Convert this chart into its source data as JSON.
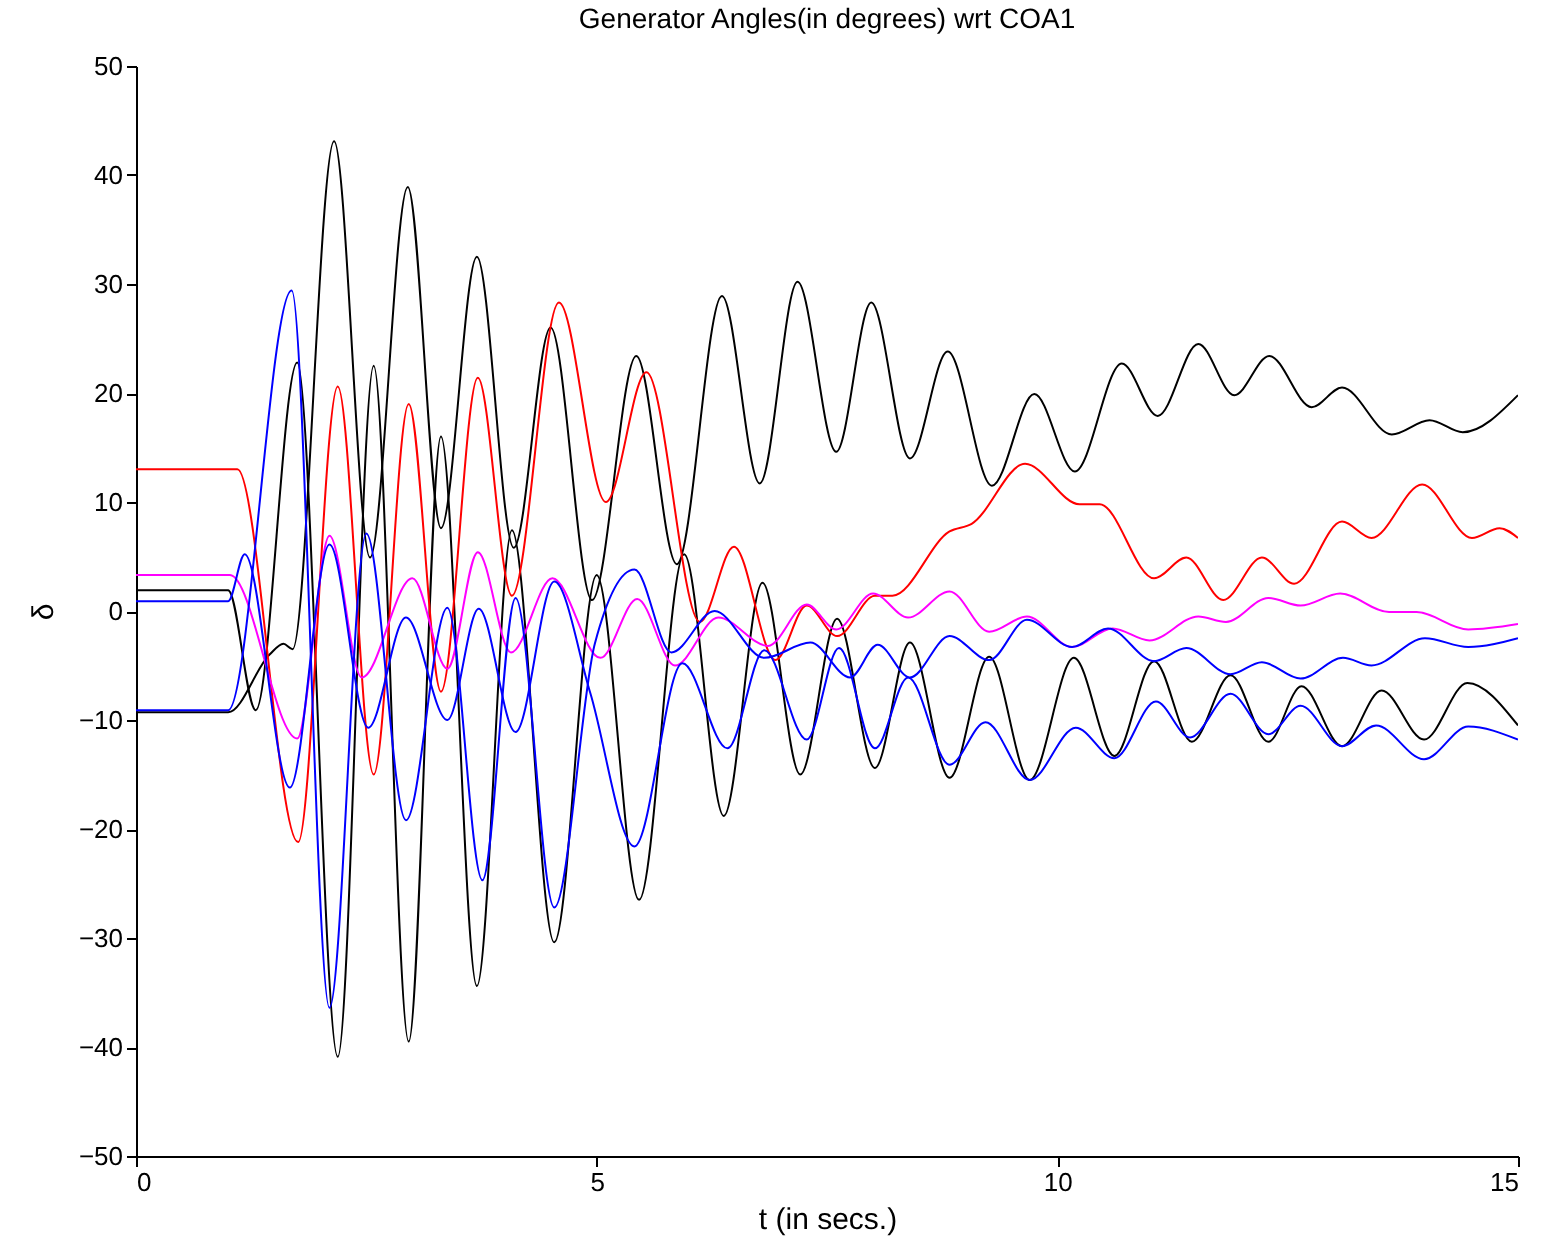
{
  "chart_data": {
    "type": "line",
    "title": "Generator Angles(in degrees) wrt COA1",
    "xlabel": "t (in secs.)",
    "ylabel": "δ",
    "xlim": [
      0,
      15
    ],
    "xticks": [
      0,
      5,
      10,
      15
    ],
    "ylim": [
      -50,
      50
    ],
    "yticks": [
      -50,
      -40,
      -30,
      -20,
      -10,
      0,
      10,
      20,
      30,
      40,
      50
    ],
    "grid": false,
    "legend": false,
    "series": [
      {
        "color": "#000000",
        "x": [
          0,
          1.0,
          1.45,
          1.6,
          1.7,
          2.15,
          2.54,
          2.95,
          3.31,
          3.7,
          4.1,
          4.5,
          4.95,
          5.43,
          5.87,
          6.36,
          6.77,
          7.18,
          7.6,
          7.98,
          8.4,
          8.81,
          9.29,
          9.75,
          10.19,
          10.7,
          11.09,
          11.53,
          11.92,
          12.3,
          12.76,
          13.09,
          13.63,
          14.04,
          14.4,
          15
        ],
        "values": [
          -9.3,
          -9.3,
          -4,
          -3,
          -3.5,
          43.1,
          4.9,
          38.9,
          7.6,
          32.5,
          5.8,
          26,
          1.0,
          23.4,
          4.3,
          28.9,
          11.7,
          30.2,
          14.6,
          28.3,
          14.0,
          23.8,
          11.5,
          19.9,
          12.8,
          22.7,
          17.9,
          24.5,
          19.8,
          23.4,
          18.7,
          20.5,
          16.2,
          17.5,
          16.4,
          19.8
        ]
      },
      {
        "color": "#000000",
        "x": [
          0,
          1.0,
          1.3,
          1.75,
          2.19,
          2.58,
          2.96,
          3.31,
          3.7,
          4.08,
          4.54,
          5.0,
          5.46,
          5.95,
          6.38,
          6.8,
          7.21,
          7.61,
          8.02,
          8.4,
          8.83,
          9.26,
          9.7,
          10.18,
          10.62,
          11.05,
          11.46,
          11.88,
          12.29,
          12.65,
          13.09,
          13.52,
          13.98,
          14.45,
          15
        ],
        "values": [
          1.9,
          1.9,
          -9.1,
          22.8,
          -40.9,
          22.5,
          -39.5,
          16.0,
          -34.4,
          7.4,
          -30.4,
          3.3,
          -26.5,
          5.2,
          -18.8,
          2.6,
          -15.0,
          -0.7,
          -14.4,
          -2.9,
          -15.3,
          -4.2,
          -15.5,
          -4.3,
          -13.3,
          -4.6,
          -12.0,
          -5.9,
          -12.0,
          -6.9,
          -12.4,
          -7.3,
          -11.8,
          -6.6,
          -10.5
        ]
      },
      {
        "color": "#ff0000",
        "x": [
          0,
          1.1,
          1.76,
          2.19,
          2.58,
          2.96,
          3.31,
          3.71,
          4.08,
          4.59,
          5.1,
          5.54,
          6.12,
          6.49,
          6.94,
          7.28,
          7.61,
          8.02,
          8.21,
          8.83,
          9.07,
          9.65,
          10.24,
          10.46,
          11.05,
          11.4,
          11.8,
          12.22,
          12.57,
          13.09,
          13.41,
          13.96,
          14.5,
          14.8,
          15
        ],
        "values": [
          13,
          13,
          -21.2,
          20.6,
          -15,
          19,
          -7.4,
          21.4,
          1.4,
          28.3,
          10,
          21.9,
          -1,
          5.9,
          -4.5,
          0.5,
          -2.3,
          1.4,
          1.4,
          7.3,
          8,
          13.5,
          9.8,
          9.8,
          3,
          4.9,
          1,
          4.9,
          2.5,
          8.2,
          6.7,
          11.6,
          6.7,
          7.6,
          6.7
        ]
      },
      {
        "color": "#ff00ff",
        "x": [
          0,
          1.02,
          1.75,
          2.1,
          2.45,
          3.0,
          3.38,
          3.71,
          4.07,
          4.52,
          5.04,
          5.44,
          5.85,
          6.32,
          6.86,
          7.28,
          7.6,
          8.0,
          8.38,
          8.83,
          9.26,
          9.67,
          10.16,
          10.6,
          11.0,
          11.53,
          11.83,
          12.29,
          12.64,
          13.07,
          13.6,
          13.9,
          14.46,
          15
        ],
        "values": [
          3.3,
          3.3,
          -11.7,
          6.9,
          -6.1,
          3.0,
          -5.3,
          5.4,
          -3.8,
          3.0,
          -4.3,
          1.1,
          -5.0,
          -0.6,
          -3.2,
          0.6,
          -1.7,
          1.6,
          -0.6,
          1.8,
          -1.9,
          -0.5,
          -3.3,
          -1.6,
          -2.7,
          -0.5,
          -1.0,
          1.2,
          0.5,
          1.6,
          -0.1,
          -0.1,
          -1.7,
          -1.2
        ]
      },
      {
        "color": "#0000ff",
        "x": [
          0,
          1.0,
          1.69,
          2.1,
          2.5,
          2.93,
          3.38,
          3.76,
          4.12,
          4.54,
          4.98,
          5.41,
          5.81,
          6.28,
          6.82,
          7.32,
          7.75,
          8.05,
          8.4,
          8.83,
          9.26,
          9.67,
          10.16,
          10.55,
          11.05,
          11.4,
          11.88,
          12.22,
          12.64,
          13.1,
          13.41,
          13.99,
          14.46,
          15
        ],
        "values": [
          -9.1,
          -9.1,
          29.4,
          -36.4,
          7.1,
          -19.2,
          0.3,
          -24.7,
          1.2,
          -27.2,
          -3.0,
          3.8,
          -3.8,
          0.0,
          -4.3,
          -2.9,
          -6.1,
          -3.1,
          -6.1,
          -2.3,
          -4.5,
          -0.8,
          -3.3,
          -1.6,
          -4.6,
          -3.4,
          -5.8,
          -4.7,
          -6.2,
          -4.3,
          -5.0,
          -2.5,
          -3.3,
          -2.5
        ]
      },
      {
        "color": "#0000ff",
        "x": [
          0,
          1.0,
          1.18,
          1.67,
          2.1,
          2.52,
          2.93,
          3.38,
          3.72,
          4.12,
          4.54,
          4.93,
          5.41,
          5.93,
          6.42,
          6.82,
          7.28,
          7.63,
          8.02,
          8.38,
          8.83,
          9.22,
          9.7,
          10.2,
          10.62,
          11.07,
          11.44,
          11.88,
          12.29,
          12.64,
          13.09,
          13.46,
          13.98,
          14.46,
          15
        ],
        "values": [
          0.9,
          0.9,
          5.2,
          -16.2,
          6.1,
          -10.7,
          -0.6,
          -10.0,
          0.2,
          -11.1,
          2.7,
          -7.5,
          -21.6,
          -4.8,
          -12.6,
          -3.6,
          -11.8,
          -3.4,
          -12.6,
          -6.1,
          -14.1,
          -10.2,
          -15.5,
          -10.7,
          -13.5,
          -8.3,
          -11.6,
          -7.6,
          -11.3,
          -8.7,
          -12.4,
          -10.5,
          -13.6,
          -10.6,
          -11.8
        ]
      }
    ]
  }
}
